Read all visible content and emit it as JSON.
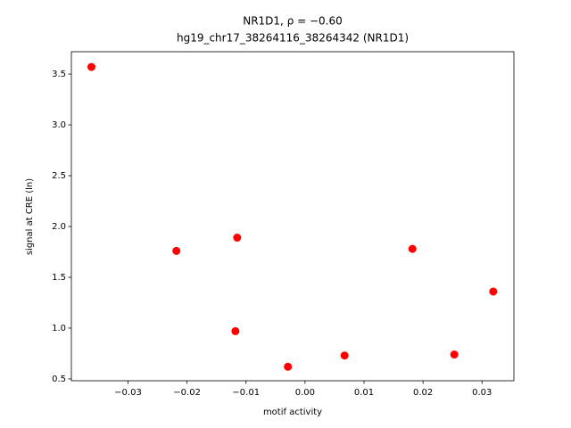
{
  "chart_data": {
    "type": "scatter",
    "title": "NR1D1, ρ = −0.60",
    "subtitle": "hg19_chr17_38264116_38264342 (NR1D1)",
    "x_label": "motif activity",
    "y_label": "signal at CRE (ln)",
    "x": [
      -0.0362,
      -0.0218,
      -0.0115,
      -0.0118,
      -0.0029,
      0.0067,
      0.0182,
      0.0253,
      0.0319
    ],
    "series": [
      {
        "color": "#ff0000",
        "values": [
          3.57,
          1.76,
          1.89,
          0.97,
          0.62,
          0.73,
          1.78,
          0.74,
          1.36
        ]
      }
    ],
    "xlim": [
      -0.0396,
      0.0354
    ],
    "ylim": [
      0.482,
      3.72
    ],
    "xticks": [
      {
        "value": -0.03,
        "label": "−0.03"
      },
      {
        "value": -0.02,
        "label": "−0.02"
      },
      {
        "value": -0.01,
        "label": "−0.01"
      },
      {
        "value": 0,
        "label": "0.00"
      },
      0.01,
      0.02,
      0.03
    ],
    "yticks": [
      0.5,
      {
        "value": 1,
        "label": "1.0"
      },
      1.5,
      {
        "value": 2,
        "label": "2.0"
      },
      2.5,
      {
        "value": 3,
        "label": "3.0"
      },
      3.5
    ],
    "grid": false
  }
}
